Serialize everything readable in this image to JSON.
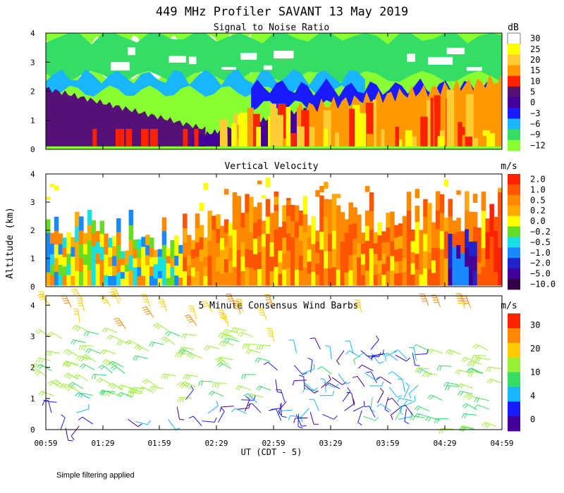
{
  "figure": {
    "title": "449 MHz Profiler SAVANT 13 May 2019",
    "y_axis_label": "Altitude (km)",
    "x_axis_label": "UT (CDT - 5)",
    "footnote": "Simple filtering applied"
  },
  "chart_data": [
    {
      "type": "heatmap",
      "title": "Signal to Noise Ratio",
      "unit": "dB",
      "x_ticks": [
        "00:59",
        "01:29",
        "01:59",
        "02:29",
        "02:59",
        "03:29",
        "03:59",
        "04:29",
        "04:59"
      ],
      "ylim": [
        0,
        4
      ],
      "y_ticks": [
        "0",
        "1",
        "2",
        "3",
        "4"
      ],
      "colorbar": {
        "labels": [
          "30",
          "25",
          "20",
          "15",
          "10",
          "5",
          "0",
          "−3",
          "−6",
          "−9",
          "−12"
        ],
        "colors": [
          "#ffffff",
          "#ffff00",
          "#ffcc33",
          "#ff9900",
          "#ff2200",
          "#551177",
          "#440099",
          "#1a1aff",
          "#19b5ff",
          "#33dd66",
          "#88ff33"
        ]
      },
      "layers_km": [
        {
          "level": 5,
          "bottom": 0.1,
          "top_start": 2.1,
          "top_end": 0.7,
          "x_from": 0.0,
          "x_to": 0.35
        },
        {
          "level": 0,
          "bottom": 0.1,
          "top_start": 0.4,
          "top_end": 1.5,
          "x_from": 0.32,
          "x_to": 0.6
        },
        {
          "level": 15,
          "bottom": 0.1,
          "top_start": 1.4,
          "top_end": 2.4,
          "x_from": 0.55,
          "x_to": 1.0
        }
      ]
    },
    {
      "type": "heatmap",
      "title": "Vertical Velocity",
      "unit": "m/s",
      "x_ticks": [
        "00:59",
        "01:29",
        "01:59",
        "02:29",
        "02:59",
        "03:29",
        "03:59",
        "04:29",
        "04:59"
      ],
      "ylim": [
        0,
        4
      ],
      "y_ticks": [
        "0",
        "1",
        "2",
        "3",
        "4"
      ],
      "colorbar": {
        "labels": [
          "2.0",
          "1.0",
          "0.5",
          "0.2",
          "0.0",
          "−0.2",
          "−0.5",
          "−1.0",
          "−2.0",
          "−5.0",
          "−10.0"
        ],
        "colors": [
          "#ff2200",
          "#ff5500",
          "#ff8800",
          "#ffaa00",
          "#ffff00",
          "#66dd22",
          "#19e0e0",
          "#1a88ff",
          "#2222cc",
          "#440099",
          "#330044"
        ]
      }
    },
    {
      "type": "scatter",
      "title": "5 Minute Consensus Wind Barbs",
      "unit": "m/s",
      "x_ticks": [
        "00:59",
        "01:29",
        "01:59",
        "02:29",
        "02:59",
        "03:29",
        "03:59",
        "04:29",
        "04:59"
      ],
      "ylim": [
        0,
        4.3
      ],
      "y_ticks": [
        "0",
        "1",
        "2",
        "3",
        "4"
      ],
      "colorbar": {
        "labels": [
          "30",
          "20",
          "10",
          "4",
          "0"
        ],
        "colors": [
          "#ff2200",
          "#ff8800",
          "#ffcc00",
          "#99ee33",
          "#33dd66",
          "#19b5ff",
          "#1a1aff",
          "#440099"
        ]
      },
      "wind_regime_m_s": [
        {
          "period": "00:59-02:59",
          "alt_km": [
            0,
            1
          ],
          "speed": 4
        },
        {
          "period": "00:59-02:59",
          "alt_km": [
            1,
            3
          ],
          "speed": 12
        },
        {
          "period": "02:59-04:29",
          "alt_km": [
            0,
            2.5
          ],
          "speed": 3
        },
        {
          "period": "04:29-04:59",
          "alt_km": [
            0,
            2
          ],
          "speed": 10
        }
      ]
    }
  ]
}
